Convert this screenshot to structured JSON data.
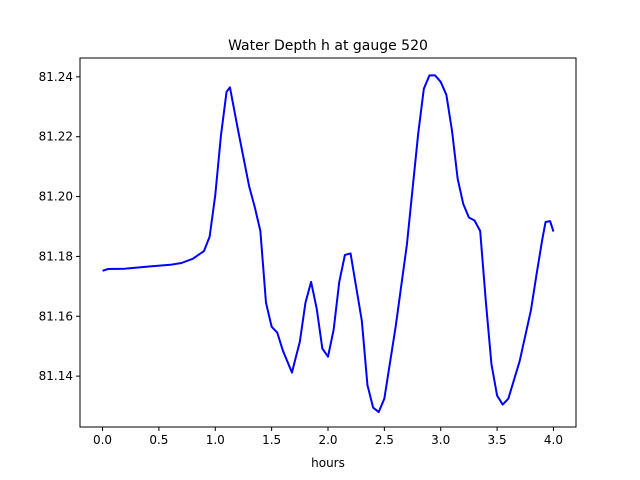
{
  "chart_data": {
    "type": "line",
    "title": "Water Depth h at gauge 520",
    "xlabel": "hours",
    "ylabel": "",
    "xlim": [
      -0.2,
      4.2
    ],
    "ylim": [
      81.123,
      81.2463
    ],
    "xticks": [
      0.0,
      0.5,
      1.0,
      1.5,
      2.0,
      2.5,
      3.0,
      3.5,
      4.0
    ],
    "xtick_labels": [
      "0.0",
      "0.5",
      "1.0",
      "1.5",
      "2.0",
      "2.5",
      "3.0",
      "3.5",
      "4.0"
    ],
    "yticks": [
      81.14,
      81.16,
      81.18,
      81.2,
      81.22,
      81.24
    ],
    "ytick_labels": [
      "81.14",
      "81.16",
      "81.18",
      "81.20",
      "81.22",
      "81.24"
    ],
    "grid": false,
    "series": [
      {
        "color": "#0000ff",
        "x": [
          0.0,
          0.05,
          0.2,
          0.4,
          0.6,
          0.7,
          0.8,
          0.9,
          0.95,
          1.0,
          1.05,
          1.1,
          1.13,
          1.2,
          1.3,
          1.35,
          1.4,
          1.45,
          1.5,
          1.55,
          1.6,
          1.68,
          1.75,
          1.8,
          1.85,
          1.9,
          1.95,
          2.0,
          2.05,
          2.1,
          2.15,
          2.2,
          2.3,
          2.35,
          2.4,
          2.45,
          2.5,
          2.6,
          2.7,
          2.8,
          2.85,
          2.9,
          2.95,
          3.0,
          3.05,
          3.1,
          3.15,
          3.2,
          3.25,
          3.3,
          3.35,
          3.4,
          3.45,
          3.5,
          3.55,
          3.6,
          3.7,
          3.8,
          3.85,
          3.9,
          3.93,
          3.97,
          4.0
        ],
        "y": [
          81.1752,
          81.1758,
          81.1759,
          81.1766,
          81.1772,
          81.1778,
          81.1792,
          81.1818,
          81.1866,
          81.2005,
          81.2203,
          81.235,
          81.2365,
          81.2226,
          81.2035,
          81.1965,
          81.1885,
          81.1645,
          81.1565,
          81.1545,
          81.1485,
          81.1412,
          81.1515,
          81.1645,
          81.1715,
          81.1625,
          81.1492,
          81.1465,
          81.1555,
          81.1715,
          81.1805,
          81.181,
          81.1585,
          81.137,
          81.1295,
          81.128,
          81.1325,
          81.1565,
          81.184,
          81.221,
          81.236,
          81.2405,
          81.2405,
          81.2383,
          81.234,
          81.222,
          81.206,
          81.1975,
          81.193,
          81.192,
          81.1885,
          81.165,
          81.144,
          81.1335,
          81.1305,
          81.1325,
          81.145,
          81.162,
          81.174,
          81.1855,
          81.1915,
          81.1918,
          81.1883
        ]
      }
    ]
  }
}
